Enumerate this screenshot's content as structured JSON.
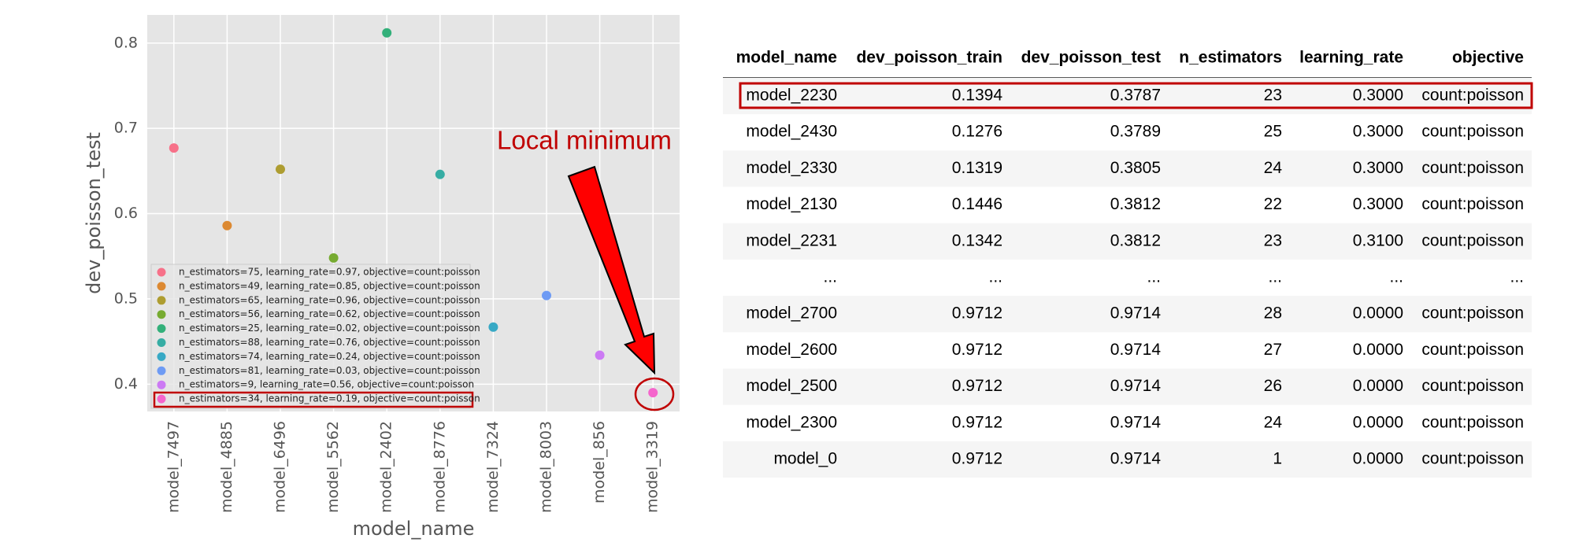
{
  "chart_data": {
    "type": "scatter",
    "xlabel": "model_name",
    "ylabel": "dev_poisson_test",
    "annotation": "Local minimum",
    "categories": [
      "model_7497",
      "model_4885",
      "model_6496",
      "model_5562",
      "model_2402",
      "model_8776",
      "model_7324",
      "model_8003",
      "model_856",
      "model_3319"
    ],
    "ylim": [
      0.368,
      0.833
    ],
    "yticks": [
      0.4,
      0.5,
      0.6,
      0.7,
      0.8
    ],
    "grid": true,
    "legend": "lower left",
    "series": [
      {
        "name": "n_estimators=75, learning_rate=0.97, objective=count:poisson",
        "color": "#f77189",
        "values": [
          0.677,
          null,
          null,
          null,
          null,
          null,
          null,
          null,
          null,
          null
        ]
      },
      {
        "name": "n_estimators=49, learning_rate=0.85, objective=count:poisson",
        "color": "#dc8932",
        "values": [
          null,
          0.586,
          null,
          null,
          null,
          null,
          null,
          null,
          null,
          null
        ]
      },
      {
        "name": "n_estimators=65, learning_rate=0.96, objective=count:poisson",
        "color": "#ae9d31",
        "values": [
          null,
          null,
          0.652,
          null,
          null,
          null,
          null,
          null,
          null,
          null
        ]
      },
      {
        "name": "n_estimators=56, learning_rate=0.62, objective=count:poisson",
        "color": "#77ab31",
        "values": [
          null,
          null,
          null,
          0.548,
          null,
          null,
          null,
          null,
          null,
          null
        ]
      },
      {
        "name": "n_estimators=25, learning_rate=0.02, objective=count:poisson",
        "color": "#33b07a",
        "values": [
          null,
          null,
          null,
          null,
          0.812,
          null,
          null,
          null,
          null,
          null
        ]
      },
      {
        "name": "n_estimators=88, learning_rate=0.76, objective=count:poisson",
        "color": "#36ada4",
        "values": [
          null,
          null,
          null,
          null,
          null,
          0.646,
          null,
          null,
          null,
          null
        ]
      },
      {
        "name": "n_estimators=74, learning_rate=0.24, objective=count:poisson",
        "color": "#38a9c5",
        "values": [
          null,
          null,
          null,
          null,
          null,
          null,
          0.467,
          null,
          null,
          null
        ]
      },
      {
        "name": "n_estimators=81, learning_rate=0.03, objective=count:poisson",
        "color": "#6e9bf4",
        "values": [
          null,
          null,
          null,
          null,
          null,
          null,
          null,
          0.504,
          null,
          null
        ]
      },
      {
        "name": "n_estimators=9, learning_rate=0.56, objective=count:poisson",
        "color": "#cc7af4",
        "values": [
          null,
          null,
          null,
          null,
          null,
          null,
          null,
          null,
          0.434,
          null
        ]
      },
      {
        "name": "n_estimators=34, learning_rate=0.19, objective=count:poisson",
        "color": "#f565cc",
        "values": [
          null,
          null,
          null,
          null,
          null,
          null,
          null,
          null,
          null,
          0.39
        ]
      }
    ]
  },
  "table": {
    "columns": [
      "model_name",
      "dev_poisson_train",
      "dev_poisson_test",
      "n_estimators",
      "learning_rate",
      "objective"
    ],
    "rows": [
      [
        "model_2230",
        "0.1394",
        "0.3787",
        "23",
        "0.3000",
        "count:poisson"
      ],
      [
        "model_2430",
        "0.1276",
        "0.3789",
        "25",
        "0.3000",
        "count:poisson"
      ],
      [
        "model_2330",
        "0.1319",
        "0.3805",
        "24",
        "0.3000",
        "count:poisson"
      ],
      [
        "model_2130",
        "0.1446",
        "0.3812",
        "22",
        "0.3000",
        "count:poisson"
      ],
      [
        "model_2231",
        "0.1342",
        "0.3812",
        "23",
        "0.3100",
        "count:poisson"
      ],
      [
        "...",
        "...",
        "...",
        "...",
        "...",
        "..."
      ],
      [
        "model_2700",
        "0.9712",
        "0.9714",
        "28",
        "0.0000",
        "count:poisson"
      ],
      [
        "model_2600",
        "0.9712",
        "0.9714",
        "27",
        "0.0000",
        "count:poisson"
      ],
      [
        "model_2500",
        "0.9712",
        "0.9714",
        "26",
        "0.0000",
        "count:poisson"
      ],
      [
        "model_2300",
        "0.9712",
        "0.9714",
        "24",
        "0.0000",
        "count:poisson"
      ],
      [
        "model_0",
        "0.9712",
        "0.9714",
        "1",
        "0.0000",
        "count:poisson"
      ]
    ]
  }
}
